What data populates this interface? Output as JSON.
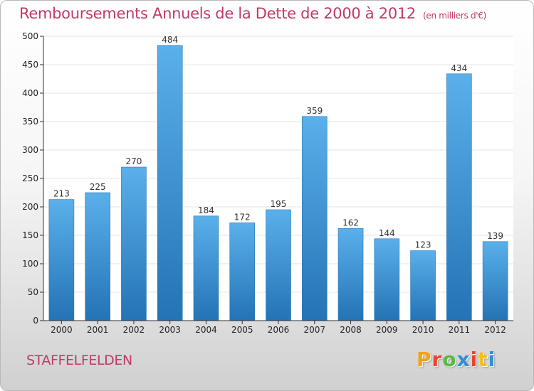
{
  "header": {
    "title": "Remboursements Annuels de la Dette de 2000 à 2012",
    "subtitle": "(en milliers d'€)"
  },
  "footer": {
    "city": "STAFFELFELDEN",
    "logo": {
      "text": "Proxiti",
      "letters": [
        "P",
        "r",
        "o",
        "x",
        "i",
        "t",
        "i"
      ]
    }
  },
  "colors": {
    "title": "#c2386a",
    "bar_top": "#5ab0ea",
    "bar_bottom": "#2473b5",
    "axis": "#333333",
    "grid": "#e6e6e6"
  },
  "chart_data": {
    "type": "bar",
    "categories": [
      "2000",
      "2001",
      "2002",
      "2003",
      "2004",
      "2005",
      "2006",
      "2007",
      "2008",
      "2009",
      "2010",
      "2011",
      "2012"
    ],
    "values": [
      213,
      225,
      270,
      484,
      184,
      172,
      195,
      359,
      162,
      144,
      123,
      434,
      139
    ],
    "ylim": [
      0,
      500
    ],
    "yticks": [
      0,
      50,
      100,
      150,
      200,
      250,
      300,
      350,
      400,
      450,
      500
    ],
    "grid": true,
    "data_labels": true
  }
}
